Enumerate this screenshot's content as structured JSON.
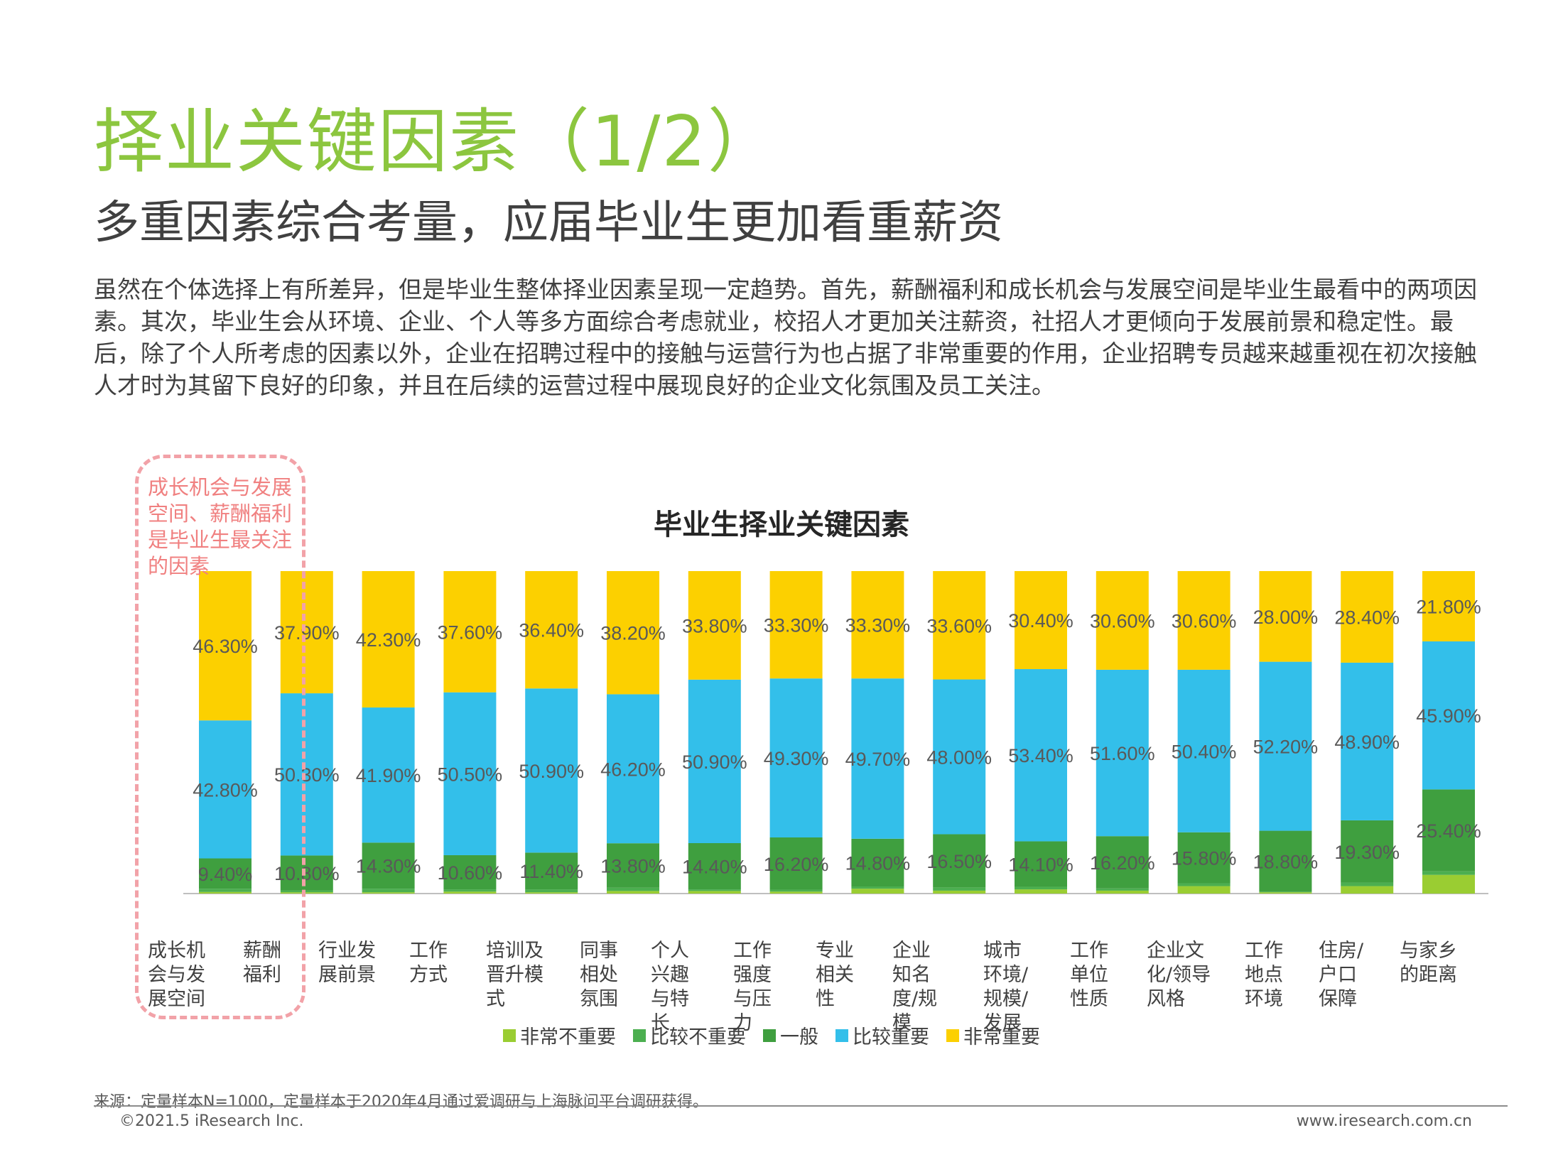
{
  "header": {
    "title": "择业关键因素（1/2）",
    "subtitle": "多重因素综合考量，应届毕业生更加看重薪资"
  },
  "body_text": "虽然在个体选择上有所差异，但是毕业生整体择业因素呈现一定趋势。首先，薪酬福利和成长机会与发展空间是毕业生最看中的两项因素。其次，毕业生会从环境、企业、个人等多方面综合考虑就业，校招人才更加关注薪资，社招人才更倾向于发展前景和稳定性。最后，除了个人所考虑的因素以外，企业在招聘过程中的接触与运营行为也占据了非常重要的作用，企业招聘专员越来越重视在初次接触人才时为其留下良好的印象，并且在后续的运营过程中展现良好的企业文化氛围及员工关注。",
  "callout": "成长机会与发展空间、薪酬福利是毕业生最关注的因素",
  "chart_data": {
    "type": "bar",
    "stacked": true,
    "title": "毕业生择业关键因素",
    "categories": [
      "成长机会与发展空间",
      "薪酬福利",
      "行业发展前景",
      "工作方式",
      "培训及晋升模式",
      "同事相处氛围",
      "个人兴趣与特长",
      "工作强度与压力",
      "专业相关性",
      "企业知名度/规模",
      "城市环境/规模/发展",
      "工作单位性质",
      "企业文化/领导风格",
      "工作地点环境",
      "住房/户口保障",
      "与家乡的距离"
    ],
    "category_labels": [
      [
        "成长机",
        "会与发",
        "展空间"
      ],
      [
        "薪酬",
        "福利"
      ],
      [
        "行业发",
        "展前景"
      ],
      [
        "工作",
        "方式"
      ],
      [
        "培训及",
        "晋升模",
        "式"
      ],
      [
        "同事",
        "相处",
        "氛围"
      ],
      [
        "个人",
        "兴趣",
        "与特",
        "长"
      ],
      [
        "工作",
        "强度",
        "与压",
        "力"
      ],
      [
        "专业",
        "相关",
        "性"
      ],
      [
        "企业",
        "知名",
        "度/规",
        "模"
      ],
      [
        "城市",
        "环境/",
        "规模/",
        "发展"
      ],
      [
        "工作",
        "单位",
        "性质"
      ],
      [
        "企业文",
        "化/领导",
        "风格"
      ],
      [
        "工作",
        "地点",
        "环境"
      ],
      [
        "住房/",
        "户口",
        "保障"
      ],
      [
        "与家乡",
        "的距离"
      ]
    ],
    "series": [
      {
        "name": "非常不重要",
        "color": "#9acd32",
        "values": [
          0.5,
          0.4,
          0.4,
          0.6,
          0.4,
          0.8,
          0.8,
          0.6,
          1.5,
          0.9,
          1.3,
          0.9,
          2.3,
          0.4,
          2.3,
          5.8
        ]
      },
      {
        "name": "比较不重要",
        "color": "#4caf50",
        "values": [
          1.0,
          0.6,
          1.1,
          0.7,
          0.9,
          1.0,
          0.5,
          0.6,
          0.7,
          1.0,
          0.8,
          0.7,
          0.9,
          0.2,
          1.1,
          1.1
        ]
      },
      {
        "name": "一般",
        "color": "#3f9f3f",
        "values": [
          9.4,
          10.8,
          14.3,
          10.6,
          11.4,
          13.8,
          14.4,
          16.2,
          14.8,
          16.5,
          14.1,
          16.2,
          15.8,
          18.8,
          19.3,
          25.4
        ]
      },
      {
        "name": "比较重要",
        "color": "#33bfea",
        "values": [
          42.8,
          50.3,
          41.9,
          50.5,
          50.9,
          46.2,
          50.9,
          49.3,
          49.7,
          48.0,
          53.4,
          51.6,
          50.4,
          52.2,
          48.9,
          45.9
        ]
      },
      {
        "name": "非常重要",
        "color": "#fcd000",
        "values": [
          46.3,
          37.9,
          42.3,
          37.6,
          36.4,
          38.2,
          33.8,
          33.3,
          33.3,
          33.6,
          30.4,
          30.6,
          30.6,
          28.0,
          28.4,
          21.8
        ]
      }
    ],
    "data_labels": {
      "一般": [
        "9.40%",
        "10.80%",
        "14.30%",
        "10.60%",
        "11.40%",
        "13.80%",
        "14.40%",
        "16.20%",
        "14.80%",
        "16.50%",
        "14.10%",
        "16.20%",
        "15.80%",
        "18.80%",
        "19.30%",
        "25.40%"
      ],
      "比较重要": [
        "42.80%",
        "50.30%",
        "41.90%",
        "50.50%",
        "50.90%",
        "46.20%",
        "50.90%",
        "49.30%",
        "49.70%",
        "48.00%",
        "53.40%",
        "51.60%",
        "50.40%",
        "52.20%",
        "48.90%",
        "45.90%"
      ],
      "非常重要": [
        "46.30%",
        "37.90%",
        "42.30%",
        "37.60%",
        "36.40%",
        "38.20%",
        "33.80%",
        "33.30%",
        "33.30%",
        "33.60%",
        "30.40%",
        "30.60%",
        "30.60%",
        "28.00%",
        "28.40%",
        "21.80%"
      ]
    },
    "ylim": [
      0,
      100
    ],
    "grid": false,
    "legend_position": "bottom"
  },
  "legend": [
    {
      "label": "非常不重要",
      "color": "#9acd32"
    },
    {
      "label": "比较不重要",
      "color": "#4caf50"
    },
    {
      "label": "一般",
      "color": "#3f9f3f"
    },
    {
      "label": "比较重要",
      "color": "#33bfea"
    },
    {
      "label": "非常重要",
      "color": "#fcd000"
    }
  ],
  "footer": {
    "source": "来源：定量样本N=1000，定量样本于2020年4月通过爱调研与上海脉问平台调研获得。",
    "copyright": "©2021.5 iResearch Inc.",
    "website": "www.iresearch.com.cn"
  }
}
